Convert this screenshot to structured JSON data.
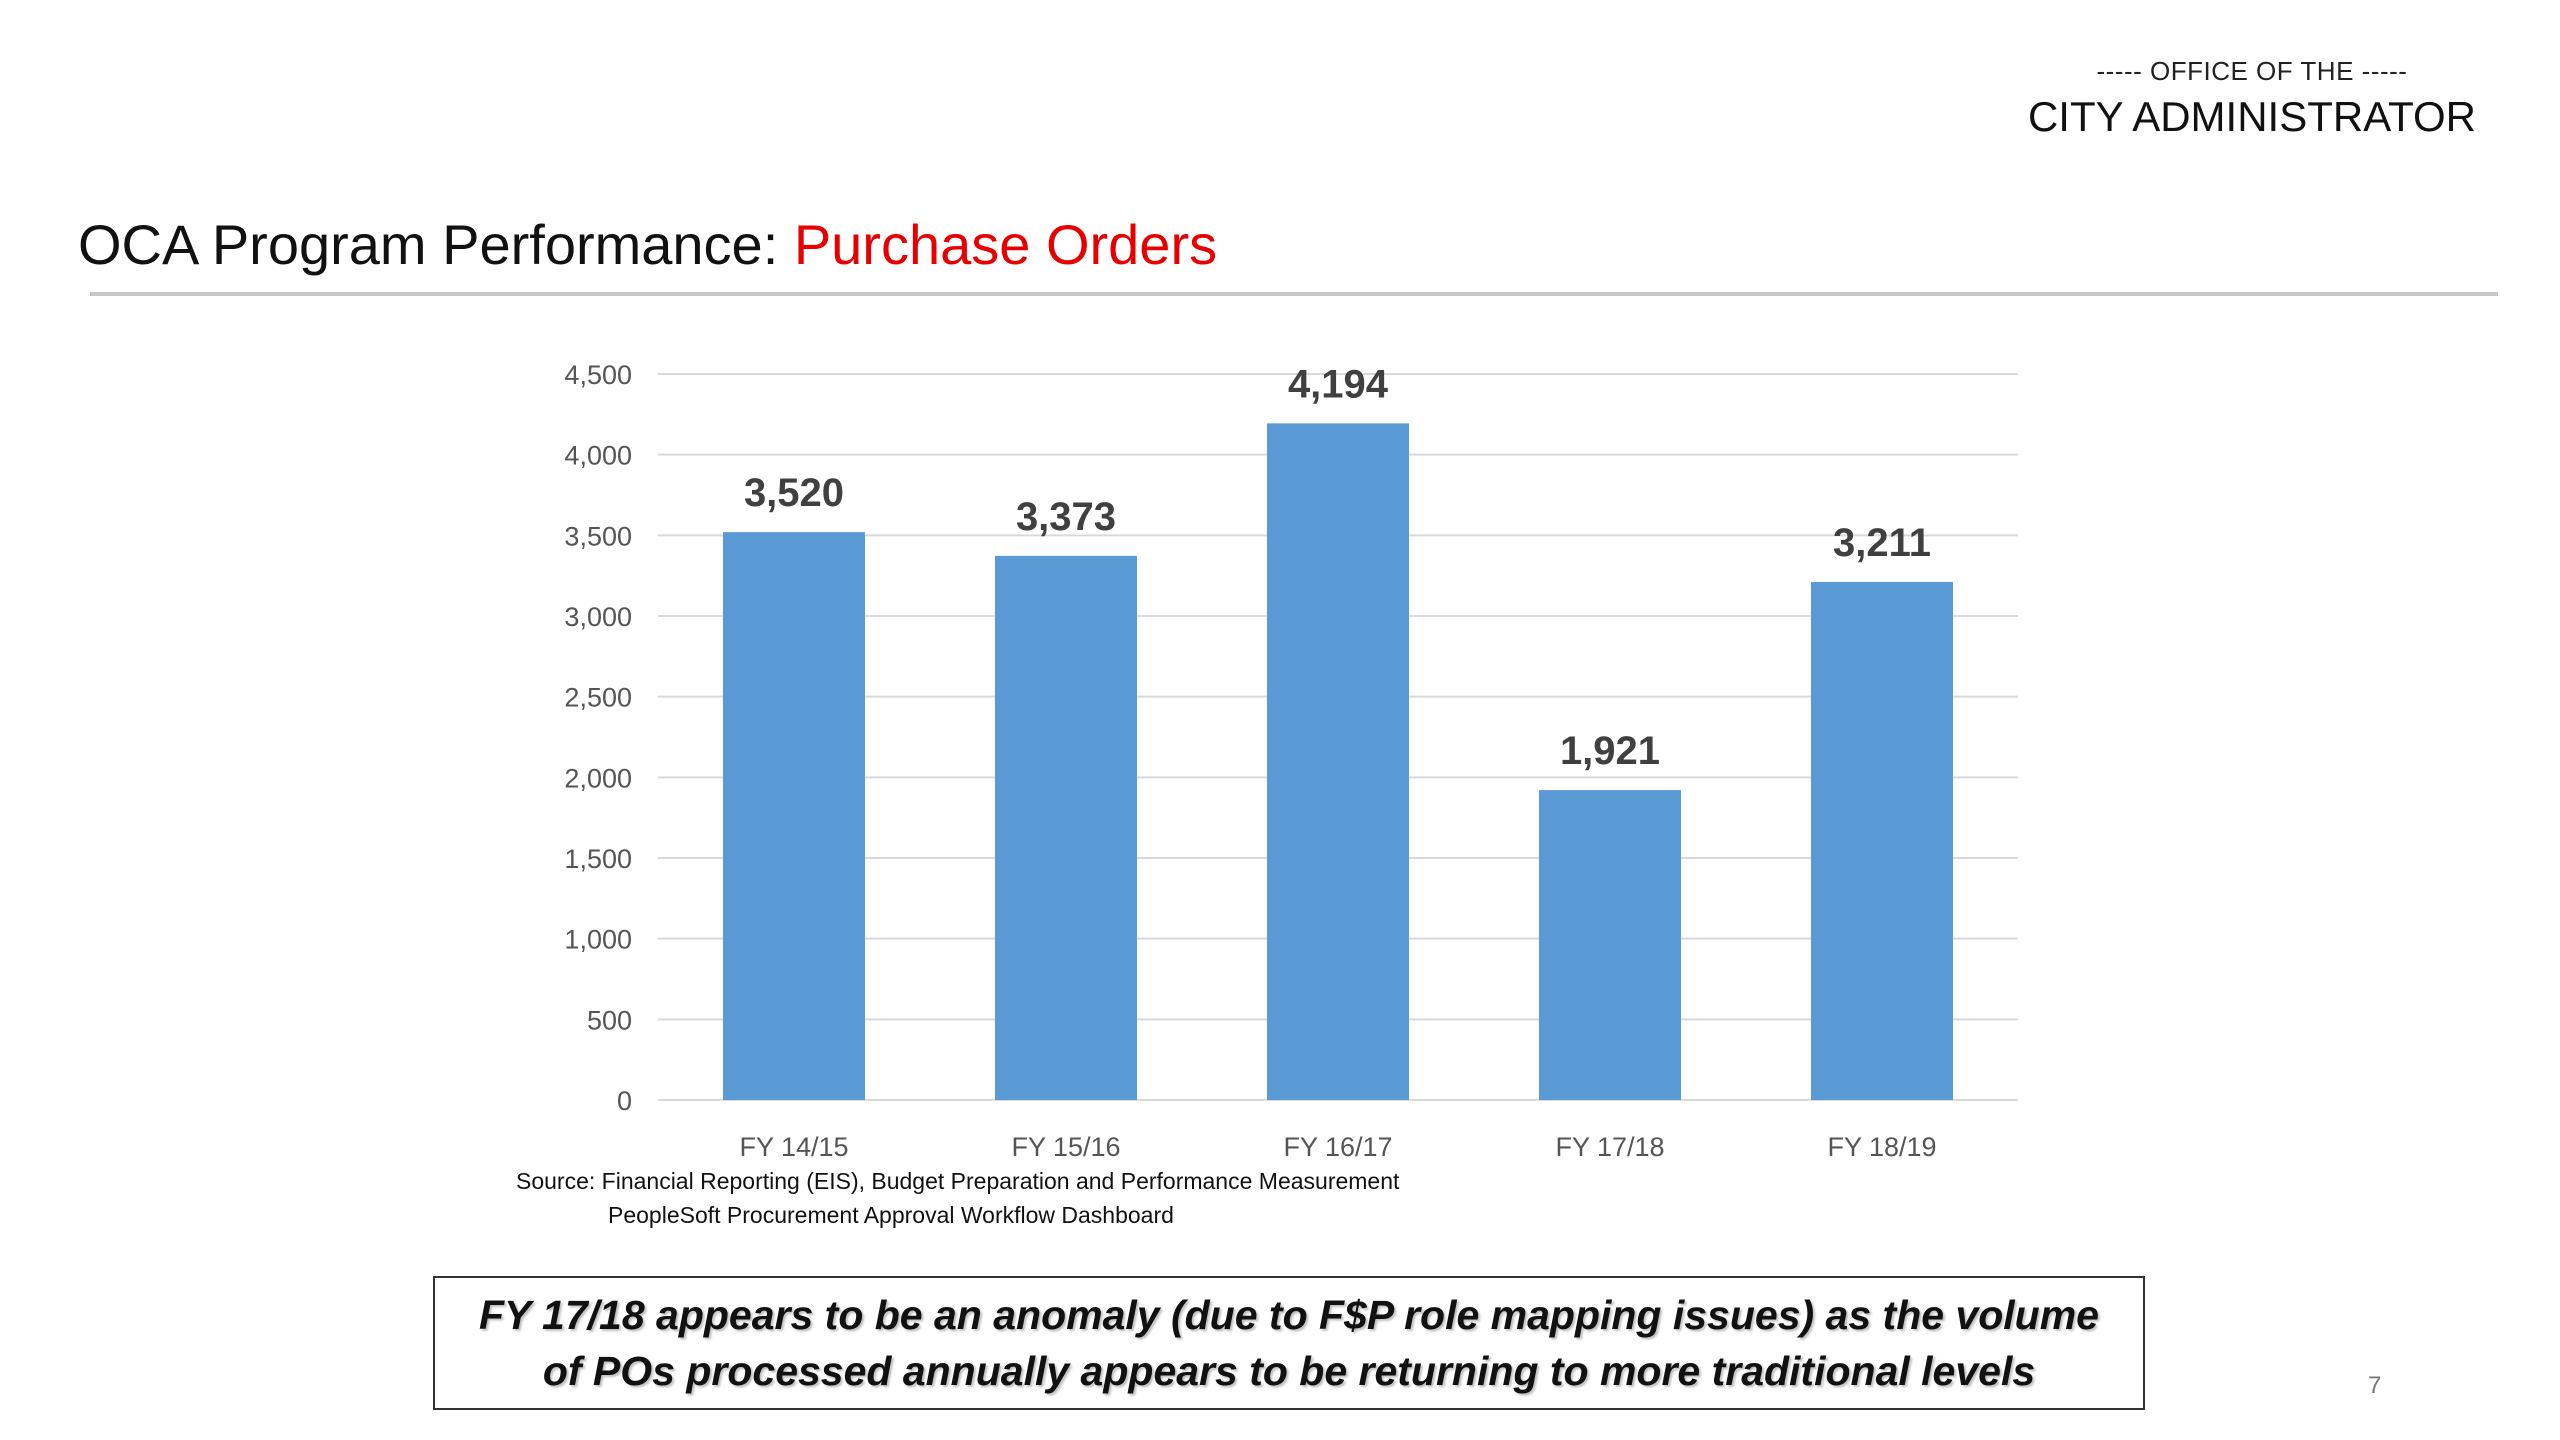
{
  "header": {
    "office_pre": "----- OFFICE OF THE -----",
    "office_name": "CITY ADMINISTRATOR"
  },
  "slide": {
    "title_prefix": "OCA Program Performance: ",
    "title_highlight": "Purchase Orders",
    "page_number": "7"
  },
  "colors": {
    "bar": "#5b9bd5",
    "title_highlight": "#e60000",
    "gridline": "#d9d9d9"
  },
  "chart_data": {
    "type": "bar",
    "categories": [
      "FY 14/15",
      "FY 15/16",
      "FY 16/17",
      "FY 17/18",
      "FY 18/19"
    ],
    "values": [
      3520,
      3373,
      4194,
      1921,
      3211
    ],
    "data_labels": [
      "3,520",
      "3,373",
      "4,194",
      "1,921",
      "3,211"
    ],
    "ylim": [
      0,
      4500
    ],
    "yticks": [
      0,
      500,
      1000,
      1500,
      2000,
      2500,
      3000,
      3500,
      4000,
      4500
    ],
    "ytick_labels": [
      "0",
      "500",
      "1,000",
      "1,500",
      "2,000",
      "2,500",
      "3,000",
      "3,500",
      "4,000",
      "4,500"
    ],
    "grid": true,
    "legend": "none",
    "title": "",
    "xlabel": "",
    "ylabel": ""
  },
  "source": {
    "line1": "Source: Financial Reporting (EIS), Budget Preparation and Performance Measurement",
    "line2": "PeopleSoft Procurement Approval Workflow Dashboard"
  },
  "callout": {
    "line1": "FY 17/18 appears to be an anomaly (due to F$P role mapping issues) as the volume",
    "line2": "of POs processed annually appears to be returning to more traditional levels"
  }
}
